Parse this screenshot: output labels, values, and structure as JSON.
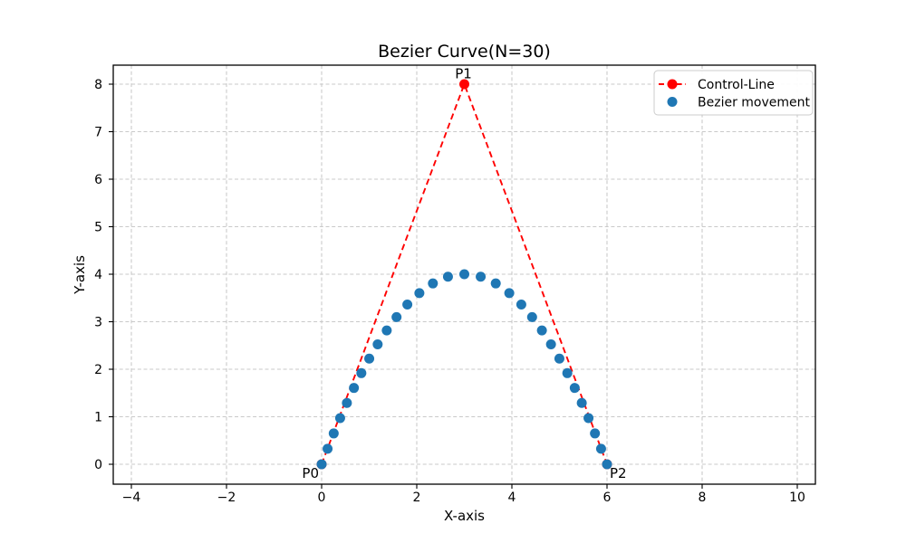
{
  "chart_data": {
    "type": "scatter",
    "title": "Bezier Curve(N=30)",
    "xlabel": "X-axis",
    "ylabel": "Y-axis",
    "xlim": [
      -4.381,
      10.381
    ],
    "ylim": [
      -0.419,
      8.4
    ],
    "x_ticks": [
      -4,
      -2,
      0,
      2,
      4,
      6,
      8,
      10
    ],
    "y_ticks": [
      0,
      1,
      2,
      3,
      4,
      5,
      6,
      7,
      8
    ],
    "grid": {
      "visible": true,
      "style": "dashed",
      "color": "#c9c9c9"
    },
    "legend": {
      "position": "upper right",
      "entries": [
        {
          "label": "Control-Line",
          "handle": "dashed-line-with-dot",
          "color": "#ff0000"
        },
        {
          "label": "Bezier movement",
          "handle": "dot",
          "color": "#1f77b4"
        }
      ]
    },
    "series": [
      {
        "name": "Control-Line",
        "type": "line",
        "line_style": "dashed",
        "marker": "circle",
        "color": "#ff0000",
        "points": [
          [
            0,
            0
          ],
          [
            3,
            8
          ],
          [
            6,
            0
          ]
        ]
      },
      {
        "name": "Bezier movement",
        "type": "scatter",
        "marker": "circle",
        "color": "#1f77b4",
        "points": [
          [
            0.0,
            0.0
          ],
          [
            0.125,
            0.326
          ],
          [
            0.254,
            0.649
          ],
          [
            0.389,
            0.971
          ],
          [
            0.531,
            1.29
          ],
          [
            0.679,
            1.606
          ],
          [
            0.835,
            1.918
          ],
          [
            1.001,
            2.224
          ],
          [
            1.178,
            2.524
          ],
          [
            1.369,
            2.817
          ],
          [
            1.575,
            3.098
          ],
          [
            1.802,
            3.362
          ],
          [
            2.055,
            3.603
          ],
          [
            2.339,
            3.806
          ],
          [
            2.656,
            3.948
          ],
          [
            3.0,
            4.0
          ],
          [
            3.344,
            3.948
          ],
          [
            3.661,
            3.806
          ],
          [
            3.945,
            3.603
          ],
          [
            4.198,
            3.362
          ],
          [
            4.425,
            3.098
          ],
          [
            4.631,
            2.817
          ],
          [
            4.822,
            2.524
          ],
          [
            4.999,
            2.224
          ],
          [
            5.165,
            1.918
          ],
          [
            5.321,
            1.606
          ],
          [
            5.469,
            1.29
          ],
          [
            5.611,
            0.971
          ],
          [
            5.746,
            0.649
          ],
          [
            5.875,
            0.326
          ],
          [
            6.0,
            0.0
          ]
        ]
      }
    ],
    "annotations": [
      {
        "text": "P0",
        "x": 0,
        "y": 0
      },
      {
        "text": "P1",
        "x": 3,
        "y": 8
      },
      {
        "text": "P2",
        "x": 6,
        "y": 0
      }
    ],
    "colors": {
      "control_line": "#ff0000",
      "bezier_points": "#1f77b4",
      "grid": "#c9c9c9",
      "spine": "#000000",
      "legend_border": "#cccccc"
    }
  }
}
